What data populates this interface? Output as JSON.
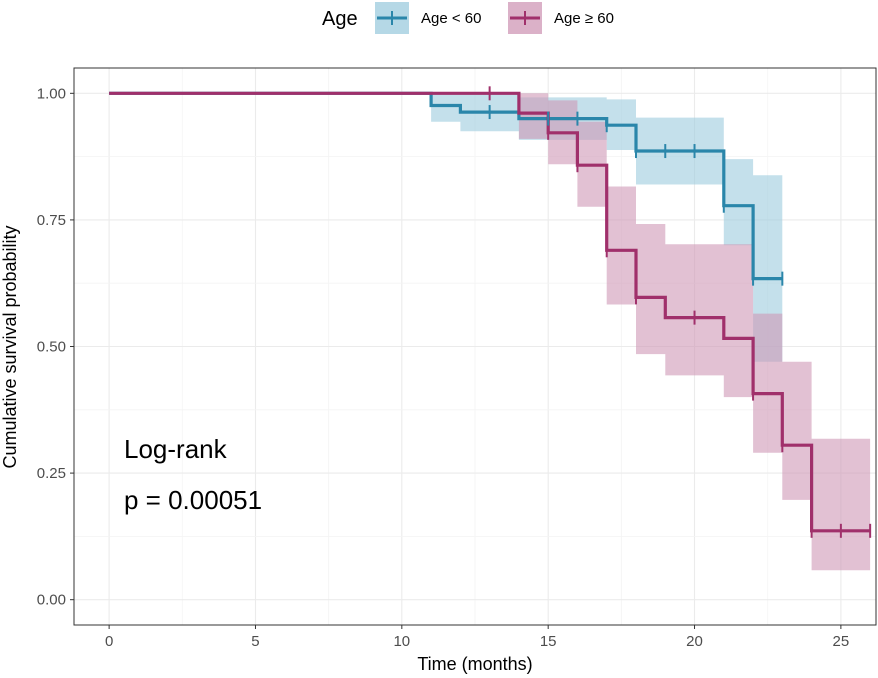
{
  "chart_data": {
    "type": "line",
    "xlabel": "Time (months)",
    "ylabel": "Cumulative survival probability",
    "xlim": [
      -1.2,
      26.2
    ],
    "ylim": [
      -0.05,
      1.05
    ],
    "x_ticks": [
      0,
      5,
      10,
      15,
      20,
      25
    ],
    "y_ticks": [
      0,
      0.25,
      0.5,
      0.75,
      1.0
    ],
    "x_tick_labels": [
      "0",
      "5",
      "10",
      "15",
      "20",
      "25"
    ],
    "y_tick_labels": [
      "0.00",
      "0.25",
      "0.50",
      "0.75",
      "1.00"
    ],
    "grid": true,
    "legend": {
      "title": "Age",
      "position": "top"
    },
    "annotation": {
      "line1": "Log-rank",
      "line2": "p = 0.00051"
    },
    "series": [
      {
        "name": "Age < 60",
        "color": "#2a86aa",
        "fill": "#9ccbdd",
        "steps": [
          {
            "x": 0,
            "y": 1.0,
            "lo": 1.0,
            "hi": 1.0
          },
          {
            "x": 11,
            "y": 0.976,
            "lo": 0.944,
            "hi": 1.0
          },
          {
            "x": 12,
            "y": 0.963,
            "lo": 0.925,
            "hi": 1.0
          },
          {
            "x": 14,
            "y": 0.95,
            "lo": 0.908,
            "hi": 0.992
          },
          {
            "x": 17,
            "y": 0.937,
            "lo": 0.888,
            "hi": 0.988
          },
          {
            "x": 18,
            "y": 0.886,
            "lo": 0.82,
            "hi": 0.952
          },
          {
            "x": 21,
            "y": 0.778,
            "lo": 0.7,
            "hi": 0.87
          },
          {
            "x": 22,
            "y": 0.634,
            "lo": 0.47,
            "hi": 0.838
          }
        ],
        "end_x": 23,
        "censored": [
          {
            "x": 13,
            "y": 0.963
          },
          {
            "x": 15,
            "y": 0.95
          },
          {
            "x": 16,
            "y": 0.95
          },
          {
            "x": 17,
            "y": 0.937
          },
          {
            "x": 18,
            "y": 0.886
          },
          {
            "x": 19,
            "y": 0.886
          },
          {
            "x": 20,
            "y": 0.886
          },
          {
            "x": 21,
            "y": 0.778
          },
          {
            "x": 22,
            "y": 0.634
          },
          {
            "x": 23,
            "y": 0.634
          }
        ]
      },
      {
        "name": "Age ≥ 60",
        "color": "#a0306b",
        "fill": "#cf97b6",
        "steps": [
          {
            "x": 0,
            "y": 1.0,
            "lo": 1.0,
            "hi": 1.0
          },
          {
            "x": 14,
            "y": 0.961,
            "lo": 0.91,
            "hi": 1.0
          },
          {
            "x": 15,
            "y": 0.922,
            "lo": 0.86,
            "hi": 0.986
          },
          {
            "x": 16,
            "y": 0.858,
            "lo": 0.776,
            "hi": 0.944
          },
          {
            "x": 17,
            "y": 0.69,
            "lo": 0.583,
            "hi": 0.816
          },
          {
            "x": 18,
            "y": 0.597,
            "lo": 0.485,
            "hi": 0.742
          },
          {
            "x": 19,
            "y": 0.557,
            "lo": 0.443,
            "hi": 0.702
          },
          {
            "x": 21,
            "y": 0.516,
            "lo": 0.4,
            "hi": 0.702
          },
          {
            "x": 22,
            "y": 0.407,
            "lo": 0.29,
            "hi": 0.565
          },
          {
            "x": 23,
            "y": 0.305,
            "lo": 0.197,
            "hi": 0.47
          },
          {
            "x": 24,
            "y": 0.136,
            "lo": 0.058,
            "hi": 0.318
          }
        ],
        "end_x": 26,
        "censored": [
          {
            "x": 13,
            "y": 1.0
          },
          {
            "x": 15,
            "y": 0.922
          },
          {
            "x": 16,
            "y": 0.858
          },
          {
            "x": 17,
            "y": 0.69
          },
          {
            "x": 18,
            "y": 0.597
          },
          {
            "x": 20,
            "y": 0.557
          },
          {
            "x": 22,
            "y": 0.407
          },
          {
            "x": 23,
            "y": 0.305
          },
          {
            "x": 24,
            "y": 0.136
          },
          {
            "x": 25,
            "y": 0.136
          },
          {
            "x": 26,
            "y": 0.136
          }
        ]
      }
    ]
  }
}
